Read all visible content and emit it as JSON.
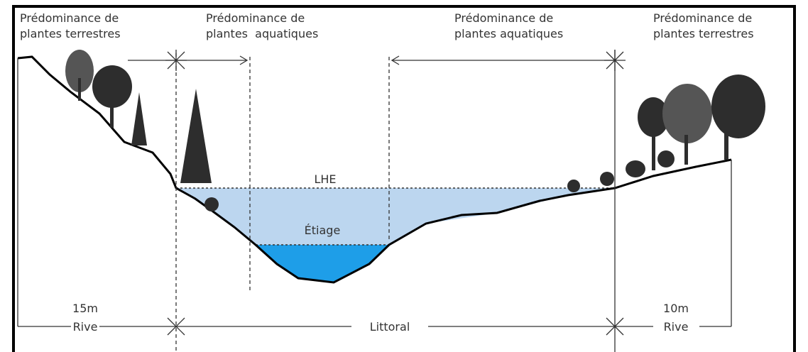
{
  "labels": {
    "top_left": [
      "Prédominance de",
      "plantes terrestres"
    ],
    "top_left_center": [
      "Prédominance de",
      "plantes  aquatiques"
    ],
    "top_right_center": [
      "Prédominance de",
      "plantes aquatiques"
    ],
    "top_right": [
      "Prédominance de",
      "plantes terrestres"
    ]
  },
  "water": {
    "high": "LHE",
    "low": "Étiage"
  },
  "bottom": {
    "left_width": "15m",
    "left_zone": "Rive",
    "center_zone": "Littoral",
    "right_width": "10m",
    "right_zone": "Rive"
  }
}
